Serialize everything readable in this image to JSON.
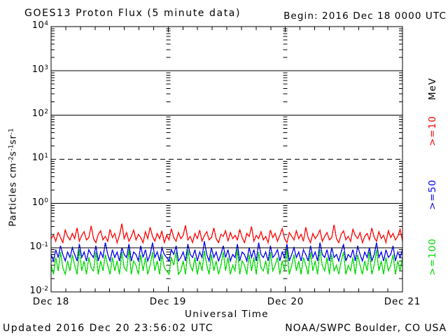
{
  "header": {
    "title": "GOES13 Proton Flux (5 minute data)",
    "begin": "Begin: 2016 Dec 18 0000 UTC"
  },
  "axes": {
    "xlabel": "Universal Time",
    "unit": "MeV",
    "x_ticks": [
      "Dec 18",
      "Dec 19",
      "Dec 20",
      "Dec 21"
    ],
    "y_ticks": [
      {
        "base": "10",
        "exp": "4"
      },
      {
        "base": "10",
        "exp": "3"
      },
      {
        "base": "10",
        "exp": "2"
      },
      {
        "base": "10",
        "exp": "1"
      },
      {
        "base": "10",
        "exp": "0"
      },
      {
        "base": "10",
        "exp": "-1"
      },
      {
        "base": "10",
        "exp": "-2"
      }
    ],
    "ylabel_parts": [
      {
        "text": "Particles cm"
      },
      {
        "text": "-2"
      },
      {
        "text": "s"
      },
      {
        "text": "-1"
      },
      {
        "text": "sr"
      },
      {
        "text": "-1"
      }
    ]
  },
  "series_labels": [
    {
      "label": ">=10",
      "color": "#ff0000"
    },
    {
      "label": ">=50",
      "color": "#0000ee"
    },
    {
      "label": ">=100",
      "color": "#00d800"
    }
  ],
  "footer": {
    "updated": "Updated 2016 Dec 20 23:56:02 UTC",
    "source": "NOAA/SWPC Boulder, CO USA"
  },
  "chart_data": {
    "type": "line",
    "title": "GOES13 Proton Flux (5 minute data)",
    "xlabel": "Universal Time",
    "ylabel": "Particles cm-2s-1sr-1",
    "yscale": "log",
    "ylim": [
      0.01,
      10000
    ],
    "x_tick_labels": [
      "Dec 18",
      "Dec 19",
      "Dec 20",
      "Dec 21"
    ],
    "x_range": [
      "2016 Dec 18 0000 UTC",
      "2016 Dec 21 0000 UTC"
    ],
    "grid": {
      "solid_lines_at": [
        1000,
        100,
        1,
        0.1
      ],
      "dashed_line_at": 10,
      "day_boundary_dash_columns": [
        1,
        2
      ]
    },
    "legend_position": "right-outside",
    "series": [
      {
        "name": ">=10 MeV",
        "color": "#ff0000",
        "values": [
          0.16,
          0.19,
          0.14,
          0.22,
          0.17,
          0.13,
          0.25,
          0.18,
          0.15,
          0.21,
          0.16,
          0.28,
          0.14,
          0.19,
          0.23,
          0.15,
          0.17,
          0.31,
          0.16,
          0.13,
          0.2,
          0.24,
          0.15,
          0.18,
          0.14,
          0.26,
          0.17,
          0.21,
          0.13,
          0.19,
          0.35,
          0.16,
          0.22,
          0.14,
          0.18,
          0.25,
          0.15,
          0.2,
          0.17,
          0.13,
          0.23,
          0.16,
          0.29,
          0.18,
          0.14,
          0.21,
          0.16,
          0.24,
          0.13,
          0.19,
          0.15,
          0.27,
          0.17,
          0.14,
          0.22,
          0.16,
          0.19,
          0.32,
          0.15,
          0.18,
          0.13,
          0.21,
          0.16,
          0.25,
          0.14,
          0.19,
          0.23,
          0.15,
          0.17,
          0.28,
          0.16,
          0.13,
          0.2,
          0.18,
          0.24,
          0.14,
          0.22,
          0.16,
          0.19,
          0.15,
          0.26,
          0.17,
          0.13,
          0.21,
          0.18,
          0.3,
          0.14,
          0.19,
          0.16,
          0.23,
          0.15,
          0.18,
          0.13,
          0.25,
          0.17,
          0.21,
          0.14,
          0.19,
          0.27,
          0.16,
          0.13,
          0.22,
          0.18,
          0.15,
          0.24,
          0.16,
          0.2,
          0.14,
          0.29,
          0.17,
          0.13,
          0.21,
          0.16,
          0.19,
          0.25,
          0.14,
          0.18,
          0.22,
          0.15,
          0.17,
          0.33,
          0.16,
          0.13,
          0.2,
          0.24,
          0.15,
          0.18,
          0.14,
          0.26,
          0.19,
          0.16,
          0.22,
          0.13,
          0.18,
          0.21,
          0.15,
          0.28,
          0.17,
          0.14,
          0.23,
          0.16,
          0.19,
          0.13,
          0.24,
          0.17,
          0.21,
          0.15,
          0.18,
          0.26,
          0.14
        ]
      },
      {
        "name": ">=50 MeV",
        "color": "#0000ee",
        "values": [
          0.07,
          0.05,
          0.09,
          0.06,
          0.11,
          0.07,
          0.05,
          0.08,
          0.06,
          0.1,
          0.07,
          0.05,
          0.12,
          0.06,
          0.08,
          0.05,
          0.09,
          0.07,
          0.06,
          0.11,
          0.05,
          0.08,
          0.06,
          0.13,
          0.07,
          0.05,
          0.09,
          0.06,
          0.08,
          0.05,
          0.1,
          0.07,
          0.06,
          0.12,
          0.05,
          0.08,
          0.07,
          0.05,
          0.11,
          0.06,
          0.09,
          0.05,
          0.07,
          0.13,
          0.06,
          0.08,
          0.05,
          0.1,
          0.07,
          0.06,
          0.05,
          0.09,
          0.07,
          0.11,
          0.05,
          0.06,
          0.08,
          0.05,
          0.12,
          0.07,
          0.06,
          0.09,
          0.05,
          0.08,
          0.06,
          0.14,
          0.07,
          0.05,
          0.1,
          0.06,
          0.08,
          0.05,
          0.07,
          0.11,
          0.06,
          0.09,
          0.05,
          0.07,
          0.06,
          0.12,
          0.05,
          0.08,
          0.07,
          0.05,
          0.1,
          0.06,
          0.09,
          0.05,
          0.13,
          0.07,
          0.06,
          0.08,
          0.05,
          0.11,
          0.06,
          0.07,
          0.09,
          0.05,
          0.08,
          0.06,
          0.12,
          0.05,
          0.07,
          0.1,
          0.06,
          0.08,
          0.05,
          0.09,
          0.07,
          0.05,
          0.11,
          0.06,
          0.08,
          0.05,
          0.13,
          0.07,
          0.06,
          0.09,
          0.05,
          0.1,
          0.06,
          0.07,
          0.05,
          0.08,
          0.12,
          0.05,
          0.07,
          0.06,
          0.09,
          0.05,
          0.11,
          0.07,
          0.05,
          0.08,
          0.06,
          0.1,
          0.05,
          0.07,
          0.13,
          0.06,
          0.08,
          0.05,
          0.09,
          0.06,
          0.07,
          0.11,
          0.05,
          0.08,
          0.06,
          0.09
        ]
      },
      {
        "name": ">=100 MeV",
        "color": "#00d800",
        "values": [
          0.04,
          0.025,
          0.06,
          0.03,
          0.08,
          0.035,
          0.025,
          0.05,
          0.03,
          0.07,
          0.04,
          0.025,
          0.09,
          0.03,
          0.05,
          0.025,
          0.06,
          0.035,
          0.03,
          0.08,
          0.025,
          0.05,
          0.03,
          0.07,
          0.04,
          0.025,
          0.06,
          0.03,
          0.05,
          0.025,
          0.08,
          0.035,
          0.03,
          0.09,
          0.025,
          0.05,
          0.04,
          0.025,
          0.07,
          0.03,
          0.06,
          0.025,
          0.04,
          0.08,
          0.03,
          0.05,
          0.025,
          0.07,
          0.035,
          0.03,
          0.025,
          0.06,
          0.04,
          0.08,
          0.025,
          0.03,
          0.05,
          0.025,
          0.09,
          0.04,
          0.03,
          0.06,
          0.025,
          0.05,
          0.03,
          0.085,
          0.04,
          0.025,
          0.07,
          0.03,
          0.05,
          0.025,
          0.04,
          0.08,
          0.03,
          0.06,
          0.025,
          0.04,
          0.03,
          0.09,
          0.025,
          0.05,
          0.04,
          0.025,
          0.07,
          0.03,
          0.06,
          0.025,
          0.08,
          0.035,
          0.03,
          0.05,
          0.025,
          0.08,
          0.03,
          0.04,
          0.06,
          0.025,
          0.05,
          0.03,
          0.09,
          0.025,
          0.04,
          0.07,
          0.03,
          0.05,
          0.025,
          0.06,
          0.04,
          0.025,
          0.08,
          0.03,
          0.05,
          0.025,
          0.09,
          0.04,
          0.03,
          0.06,
          0.025,
          0.07,
          0.03,
          0.04,
          0.025,
          0.05,
          0.08,
          0.025,
          0.04,
          0.03,
          0.06,
          0.025,
          0.07,
          0.04,
          0.025,
          0.05,
          0.03,
          0.08,
          0.025,
          0.04,
          0.09,
          0.03,
          0.05,
          0.025,
          0.06,
          0.03,
          0.04,
          0.07,
          0.025,
          0.05,
          0.03,
          0.06
        ]
      }
    ]
  }
}
